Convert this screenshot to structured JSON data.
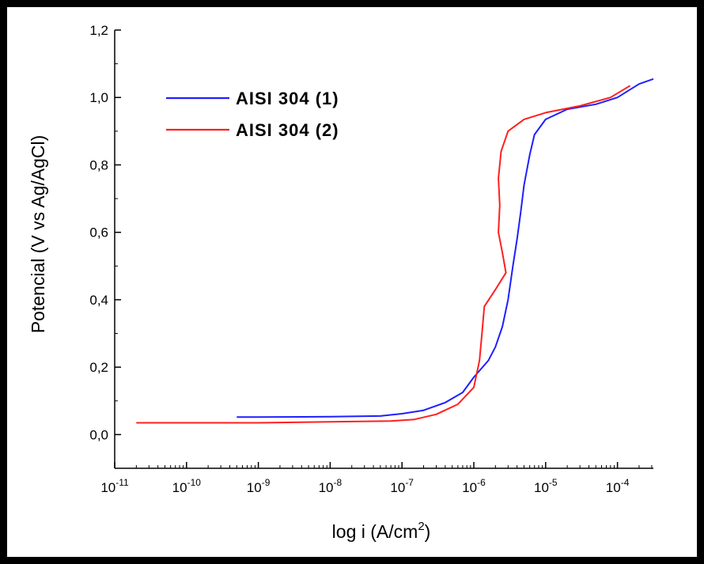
{
  "chart_data": {
    "type": "line",
    "xlabel": "log i (A/cm",
    "xlabel_sup": "2",
    "xlabel_end": ")",
    "ylabel": "Potencial (V vs Ag/AgCl)",
    "x_scale": "log",
    "xlim": [
      1e-11,
      0.0003162
    ],
    "ylim": [
      -0.1,
      1.2
    ],
    "grid": false,
    "legend_position": "top-left",
    "x_ticks": [
      {
        "value": 1e-11,
        "base": "10",
        "exp": "-11"
      },
      {
        "value": 1e-10,
        "base": "10",
        "exp": "-10"
      },
      {
        "value": 1e-09,
        "base": "10",
        "exp": "-9"
      },
      {
        "value": 1e-08,
        "base": "10",
        "exp": "-8"
      },
      {
        "value": 1e-07,
        "base": "10",
        "exp": "-7"
      },
      {
        "value": 1e-06,
        "base": "10",
        "exp": "-6"
      },
      {
        "value": 1e-05,
        "base": "10",
        "exp": "-5"
      },
      {
        "value": 0.0001,
        "base": "10",
        "exp": "-4"
      }
    ],
    "y_ticks": [
      {
        "value": 0.0,
        "label": "0,0"
      },
      {
        "value": 0.2,
        "label": "0,2"
      },
      {
        "value": 0.4,
        "label": "0,4"
      },
      {
        "value": 0.6,
        "label": "0,6"
      },
      {
        "value": 0.8,
        "label": "0,8"
      },
      {
        "value": 1.0,
        "label": "1,0"
      },
      {
        "value": 1.2,
        "label": "1,2"
      }
    ],
    "series": [
      {
        "name": "AISI 304 (1)",
        "color": "#1f1fff",
        "points": [
          [
            5e-10,
            0.052
          ],
          [
            1e-09,
            0.052
          ],
          [
            1e-08,
            0.053
          ],
          [
            5e-08,
            0.055
          ],
          [
            1e-07,
            0.062
          ],
          [
            2e-07,
            0.072
          ],
          [
            4e-07,
            0.095
          ],
          [
            7e-07,
            0.125
          ],
          [
            1e-06,
            0.17
          ],
          [
            1.6e-06,
            0.22
          ],
          [
            2e-06,
            0.26
          ],
          [
            2.5e-06,
            0.32
          ],
          [
            3e-06,
            0.4
          ],
          [
            3.5e-06,
            0.5
          ],
          [
            4e-06,
            0.58
          ],
          [
            4.5e-06,
            0.66
          ],
          [
            5e-06,
            0.74
          ],
          [
            6e-06,
            0.83
          ],
          [
            7e-06,
            0.89
          ],
          [
            1e-05,
            0.935
          ],
          [
            2e-05,
            0.965
          ],
          [
            5e-05,
            0.98
          ],
          [
            0.0001,
            1.0
          ],
          [
            0.0002,
            1.04
          ],
          [
            0.000316,
            1.055
          ]
        ]
      },
      {
        "name": "AISI 304 (2)",
        "color": "#ff1f1f",
        "points": [
          [
            2e-11,
            0.035
          ],
          [
            1e-09,
            0.035
          ],
          [
            1e-08,
            0.038
          ],
          [
            7e-08,
            0.04
          ],
          [
            1.5e-07,
            0.045
          ],
          [
            3e-07,
            0.06
          ],
          [
            6e-07,
            0.09
          ],
          [
            1e-06,
            0.14
          ],
          [
            1.2e-06,
            0.22
          ],
          [
            1.3e-06,
            0.3
          ],
          [
            1.4e-06,
            0.38
          ],
          [
            2e-06,
            0.43
          ],
          [
            2.8e-06,
            0.48
          ],
          [
            2.5e-06,
            0.54
          ],
          [
            2.2e-06,
            0.6
          ],
          [
            2.3e-06,
            0.68
          ],
          [
            2.2e-06,
            0.76
          ],
          [
            2.4e-06,
            0.84
          ],
          [
            3e-06,
            0.9
          ],
          [
            5e-06,
            0.935
          ],
          [
            1e-05,
            0.955
          ],
          [
            3e-05,
            0.975
          ],
          [
            8e-05,
            1.0
          ],
          [
            0.00015,
            1.035
          ]
        ]
      }
    ]
  }
}
